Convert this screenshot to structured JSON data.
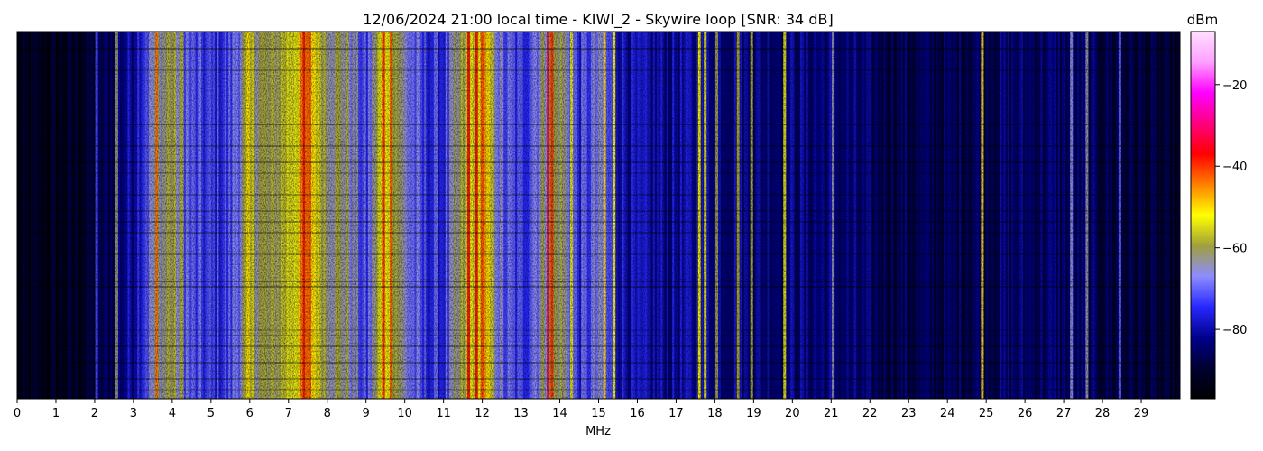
{
  "chart_data": {
    "type": "heatmap",
    "title": "12/06/2024 21:00 local time - KIWI_2 - Skywire loop [SNR: 34 dB]",
    "xlabel": "MHz",
    "ylabel": "",
    "xlim": [
      0,
      30
    ],
    "x_ticks": [
      "0",
      "1",
      "2",
      "3",
      "4",
      "5",
      "6",
      "7",
      "8",
      "9",
      "10",
      "11",
      "12",
      "13",
      "14",
      "15",
      "16",
      "17",
      "18",
      "19",
      "20",
      "21",
      "22",
      "23",
      "24",
      "25",
      "26",
      "27",
      "28",
      "29"
    ],
    "colorbar": {
      "label": "dBm",
      "range": [
        -97,
        -7
      ],
      "ticks": [
        "−20",
        "−40",
        "−60",
        "−80"
      ],
      "tick_values": [
        -20,
        -40,
        -60,
        -80
      ],
      "colormap": [
        "#000000",
        "#000030",
        "#00008c",
        "#2828ff",
        "#8c8cff",
        "#a0a03c",
        "#ffff00",
        "#ff8000",
        "#ff0000",
        "#ff0080",
        "#ff00ff",
        "#ffa0ff",
        "#ffe0ff"
      ]
    },
    "spectrum_profile_dbm": [
      {
        "mhz": 0.0,
        "dbm": -94
      },
      {
        "mhz": 0.5,
        "dbm": -92
      },
      {
        "mhz": 1.0,
        "dbm": -92
      },
      {
        "mhz": 1.5,
        "dbm": -91
      },
      {
        "mhz": 2.0,
        "dbm": -88
      },
      {
        "mhz": 2.5,
        "dbm": -84
      },
      {
        "mhz": 3.0,
        "dbm": -78
      },
      {
        "mhz": 3.5,
        "dbm": -66
      },
      {
        "mhz": 4.0,
        "dbm": -60
      },
      {
        "mhz": 4.5,
        "dbm": -72
      },
      {
        "mhz": 5.0,
        "dbm": -74
      },
      {
        "mhz": 5.5,
        "dbm": -72
      },
      {
        "mhz": 6.0,
        "dbm": -58
      },
      {
        "mhz": 6.5,
        "dbm": -62
      },
      {
        "mhz": 7.0,
        "dbm": -55
      },
      {
        "mhz": 7.5,
        "dbm": -46
      },
      {
        "mhz": 8.0,
        "dbm": -60
      },
      {
        "mhz": 8.5,
        "dbm": -62
      },
      {
        "mhz": 9.0,
        "dbm": -74
      },
      {
        "mhz": 9.5,
        "dbm": -48
      },
      {
        "mhz": 10.0,
        "dbm": -66
      },
      {
        "mhz": 10.5,
        "dbm": -74
      },
      {
        "mhz": 11.0,
        "dbm": -74
      },
      {
        "mhz": 11.5,
        "dbm": -60
      },
      {
        "mhz": 12.0,
        "dbm": -46
      },
      {
        "mhz": 12.5,
        "dbm": -70
      },
      {
        "mhz": 13.0,
        "dbm": -74
      },
      {
        "mhz": 13.5,
        "dbm": -64
      },
      {
        "mhz": 14.0,
        "dbm": -60
      },
      {
        "mhz": 14.5,
        "dbm": -74
      },
      {
        "mhz": 15.0,
        "dbm": -68
      },
      {
        "mhz": 15.5,
        "dbm": -76
      },
      {
        "mhz": 16.0,
        "dbm": -80
      },
      {
        "mhz": 17.0,
        "dbm": -80
      },
      {
        "mhz": 18.0,
        "dbm": -80
      },
      {
        "mhz": 19.0,
        "dbm": -82
      },
      {
        "mhz": 20.0,
        "dbm": -82
      },
      {
        "mhz": 21.0,
        "dbm": -82
      },
      {
        "mhz": 22.0,
        "dbm": -85
      },
      {
        "mhz": 23.0,
        "dbm": -86
      },
      {
        "mhz": 24.0,
        "dbm": -86
      },
      {
        "mhz": 25.0,
        "dbm": -84
      },
      {
        "mhz": 26.0,
        "dbm": -84
      },
      {
        "mhz": 27.0,
        "dbm": -84
      },
      {
        "mhz": 28.0,
        "dbm": -86
      },
      {
        "mhz": 29.0,
        "dbm": -88
      },
      {
        "mhz": 30.0,
        "dbm": -92
      }
    ],
    "carrier_lines_mhz": [
      {
        "mhz": 2.05,
        "dbm": -72
      },
      {
        "mhz": 2.57,
        "dbm": -62
      },
      {
        "mhz": 3.6,
        "dbm": -44
      },
      {
        "mhz": 3.9,
        "dbm": -58
      },
      {
        "mhz": 4.25,
        "dbm": -58
      },
      {
        "mhz": 5.95,
        "dbm": -50
      },
      {
        "mhz": 7.4,
        "dbm": -38
      },
      {
        "mhz": 7.55,
        "dbm": -42
      },
      {
        "mhz": 9.45,
        "dbm": -40
      },
      {
        "mhz": 9.65,
        "dbm": -42
      },
      {
        "mhz": 11.65,
        "dbm": -38
      },
      {
        "mhz": 11.85,
        "dbm": -38
      },
      {
        "mhz": 12.0,
        "dbm": -42
      },
      {
        "mhz": 13.7,
        "dbm": -38
      },
      {
        "mhz": 13.8,
        "dbm": -40
      },
      {
        "mhz": 14.3,
        "dbm": -54
      },
      {
        "mhz": 15.15,
        "dbm": -50
      },
      {
        "mhz": 15.4,
        "dbm": -52
      },
      {
        "mhz": 17.6,
        "dbm": -52
      },
      {
        "mhz": 17.75,
        "dbm": -54
      },
      {
        "mhz": 18.05,
        "dbm": -60
      },
      {
        "mhz": 18.6,
        "dbm": -58
      },
      {
        "mhz": 18.95,
        "dbm": -58
      },
      {
        "mhz": 19.8,
        "dbm": -54
      },
      {
        "mhz": 21.05,
        "dbm": -64
      },
      {
        "mhz": 24.9,
        "dbm": -50
      },
      {
        "mhz": 27.2,
        "dbm": -66
      },
      {
        "mhz": 27.6,
        "dbm": -64
      },
      {
        "mhz": 28.45,
        "dbm": -70
      }
    ],
    "grid": false
  }
}
